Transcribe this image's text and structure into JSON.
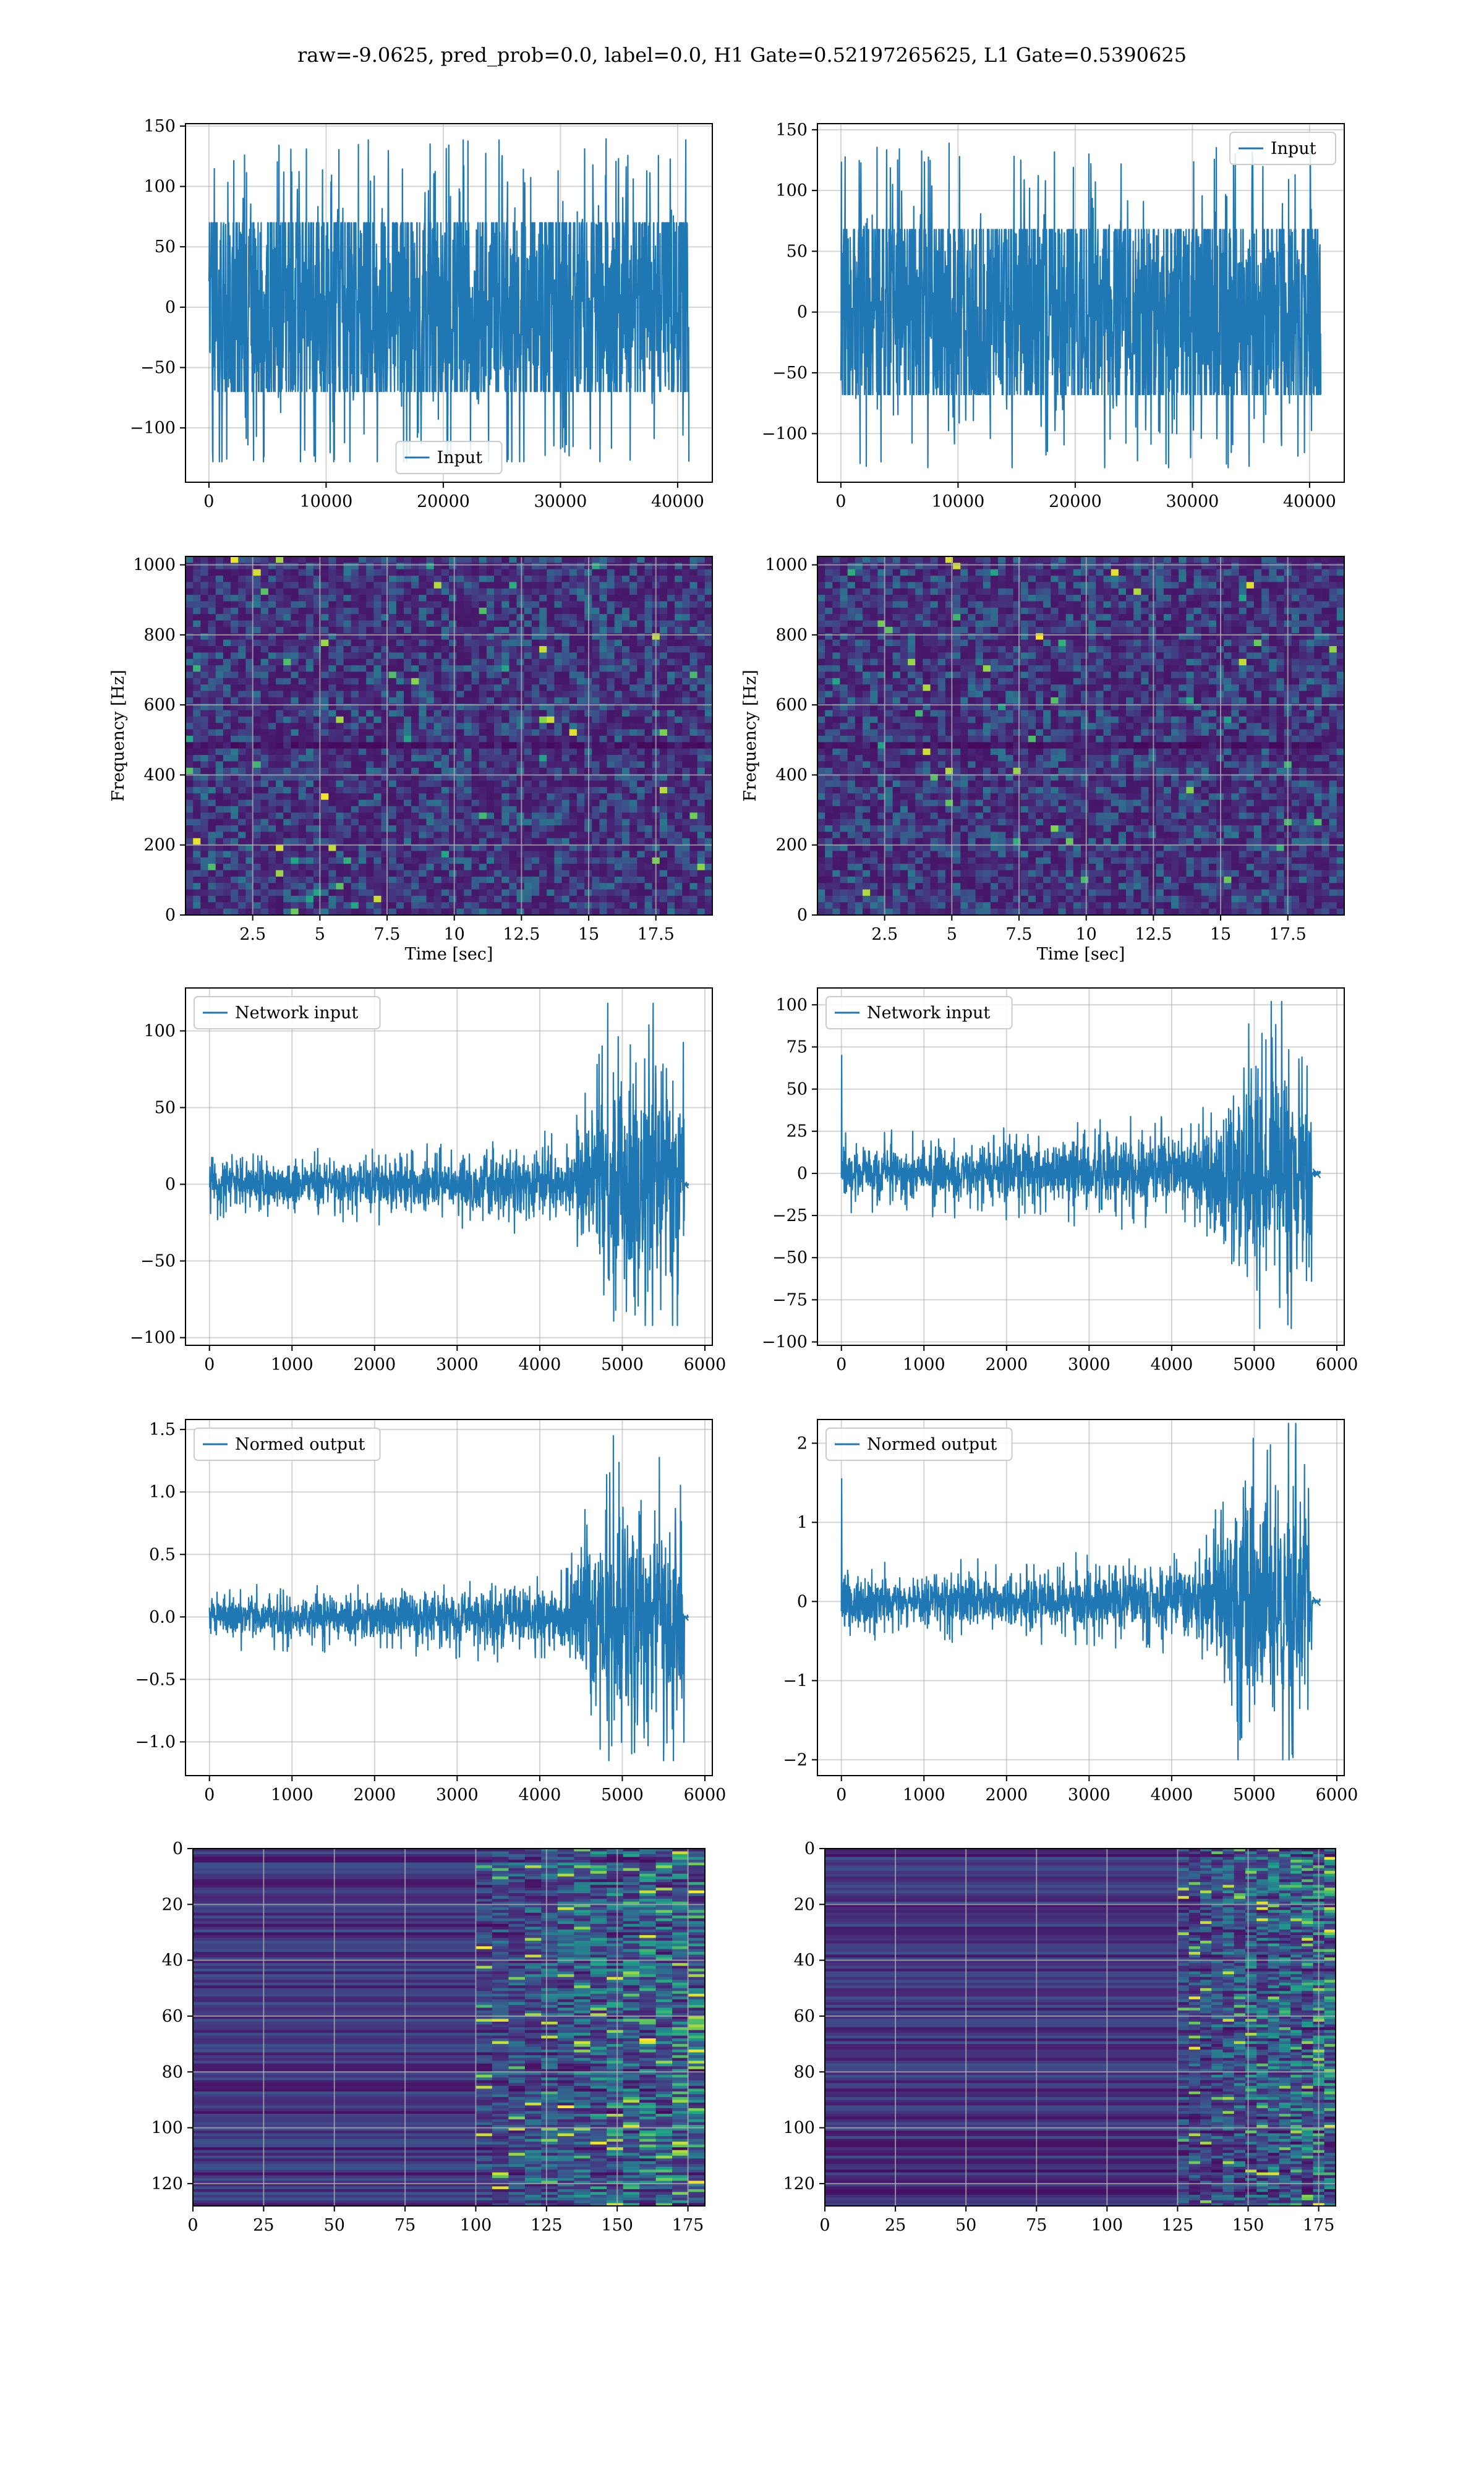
{
  "figure": {
    "suptitle": "raw=-9.0625, pred_prob=0.0, label=0.0, H1 Gate=0.52197265625, L1 Gate=0.5390625"
  },
  "colors": {
    "line": "#1f77b4",
    "grid": "#b0b0b0",
    "viridis_dark": "#440154",
    "viridis_mid": "#31688e",
    "viridis_bright": "#fde725"
  },
  "chart_data": [
    {
      "id": "h1-input",
      "type": "line",
      "legend": "Input",
      "legend_loc": "lower-center",
      "xlim": [
        -2000,
        42960
      ],
      "ylim": [
        -145,
        152
      ],
      "xticks": [
        0,
        10000,
        20000,
        30000,
        40000
      ],
      "yticks": [
        -100,
        -50,
        0,
        50,
        100,
        150
      ],
      "x_range": [
        0,
        40960
      ],
      "envelope": {
        "base_amplitude": 72,
        "peak_max": 140,
        "peak_min": -128
      }
    },
    {
      "id": "l1-input",
      "type": "line",
      "legend": "Input",
      "legend_loc": "upper-right",
      "xlim": [
        -2000,
        42960
      ],
      "ylim": [
        -140,
        155
      ],
      "xticks": [
        0,
        10000,
        20000,
        30000,
        40000
      ],
      "yticks": [
        -100,
        -50,
        0,
        50,
        100,
        150
      ],
      "x_range": [
        0,
        40960
      ],
      "envelope": {
        "base_amplitude": 70,
        "peak_max": 140,
        "peak_min": -128
      }
    },
    {
      "id": "h1-spectrogram",
      "type": "heatmap",
      "xlabel": "Time [sec]",
      "ylabel": "Frequency [Hz]",
      "xlim": [
        0,
        19.6
      ],
      "ylim": [
        0,
        1024
      ],
      "xticks": [
        2.5,
        5.0,
        7.5,
        10.0,
        12.5,
        15.0,
        17.5
      ],
      "yticks": [
        0,
        200,
        400,
        600,
        800,
        1000
      ],
      "colormap": "viridis"
    },
    {
      "id": "l1-spectrogram",
      "type": "heatmap",
      "xlabel": "Time [sec]",
      "ylabel": "Frequency [Hz]",
      "xlim": [
        0,
        19.6
      ],
      "ylim": [
        0,
        1024
      ],
      "xticks": [
        2.5,
        5.0,
        7.5,
        10.0,
        12.5,
        15.0,
        17.5
      ],
      "yticks": [
        0,
        200,
        400,
        600,
        800,
        1000
      ],
      "colormap": "viridis"
    },
    {
      "id": "h1-network-input",
      "type": "line",
      "legend": "Network input",
      "legend_loc": "upper-left",
      "xlim": [
        -290,
        6090
      ],
      "ylim": [
        -105,
        128
      ],
      "xticks": [
        0,
        1000,
        2000,
        3000,
        4000,
        5000,
        6000
      ],
      "yticks": [
        -100,
        -50,
        0,
        50,
        100
      ],
      "x_range": [
        0,
        5800
      ],
      "envelope": {
        "base_amplitude": 14,
        "burst_start": 4600,
        "burst_end": 5750,
        "peak_max": 118,
        "peak_min": -92
      }
    },
    {
      "id": "l1-network-input",
      "type": "line",
      "legend": "Network input",
      "legend_loc": "upper-left",
      "xlim": [
        -290,
        6090
      ],
      "ylim": [
        -102,
        110
      ],
      "xticks": [
        0,
        1000,
        2000,
        3000,
        4000,
        5000,
        6000
      ],
      "yticks": [
        -100,
        -75,
        -50,
        -25,
        0,
        25,
        50,
        75,
        100
      ],
      "x_range": [
        0,
        5800
      ],
      "envelope": {
        "base_amplitude": 15,
        "burst_start": 4650,
        "burst_end": 5700,
        "peak_max": 102,
        "peak_min": -92,
        "initial_spike": 70
      }
    },
    {
      "id": "h1-normed-output",
      "type": "line",
      "legend": "Normed output",
      "legend_loc": "upper-left",
      "xlim": [
        -290,
        6090
      ],
      "ylim": [
        -1.27,
        1.58
      ],
      "xticks": [
        0,
        1000,
        2000,
        3000,
        4000,
        5000,
        6000
      ],
      "yticks": [
        -1.0,
        -0.5,
        0.0,
        0.5,
        1.0,
        1.5
      ],
      "ytick_labels": [
        "−1.0",
        "−0.5",
        "0.0",
        "0.5",
        "1.0",
        "1.5"
      ],
      "x_range": [
        0,
        5800
      ],
      "envelope": {
        "base_amplitude": 0.16,
        "burst_start": 4600,
        "burst_end": 5750,
        "peak_max": 1.45,
        "peak_min": -1.15
      }
    },
    {
      "id": "l1-normed-output",
      "type": "line",
      "legend": "Normed output",
      "legend_loc": "upper-left",
      "xlim": [
        -290,
        6090
      ],
      "ylim": [
        -2.2,
        2.3
      ],
      "xticks": [
        0,
        1000,
        2000,
        3000,
        4000,
        5000,
        6000
      ],
      "yticks": [
        -2,
        -1,
        0,
        1,
        2
      ],
      "x_range": [
        0,
        5800
      ],
      "envelope": {
        "base_amplitude": 0.3,
        "burst_start": 4650,
        "burst_end": 5700,
        "peak_max": 2.25,
        "peak_min": -2.0,
        "initial_spike": 1.55
      }
    },
    {
      "id": "h1-feature-map",
      "type": "heatmap",
      "xlim": [
        0,
        181
      ],
      "ylim": [
        128,
        0
      ],
      "xticks": [
        0,
        25,
        50,
        75,
        100,
        125,
        150,
        175
      ],
      "yticks": [
        0,
        20,
        40,
        60,
        80,
        100,
        120
      ],
      "rows": 128,
      "cols": 181,
      "activation_onset_col": 100,
      "colormap": "viridis"
    },
    {
      "id": "l1-feature-map",
      "type": "heatmap",
      "xlim": [
        0,
        181
      ],
      "ylim": [
        128,
        0
      ],
      "xticks": [
        0,
        25,
        50,
        75,
        100,
        125,
        150,
        175
      ],
      "yticks": [
        0,
        20,
        40,
        60,
        80,
        100,
        120
      ],
      "rows": 128,
      "cols": 181,
      "activation_onset_col": 125,
      "colormap": "viridis"
    }
  ]
}
